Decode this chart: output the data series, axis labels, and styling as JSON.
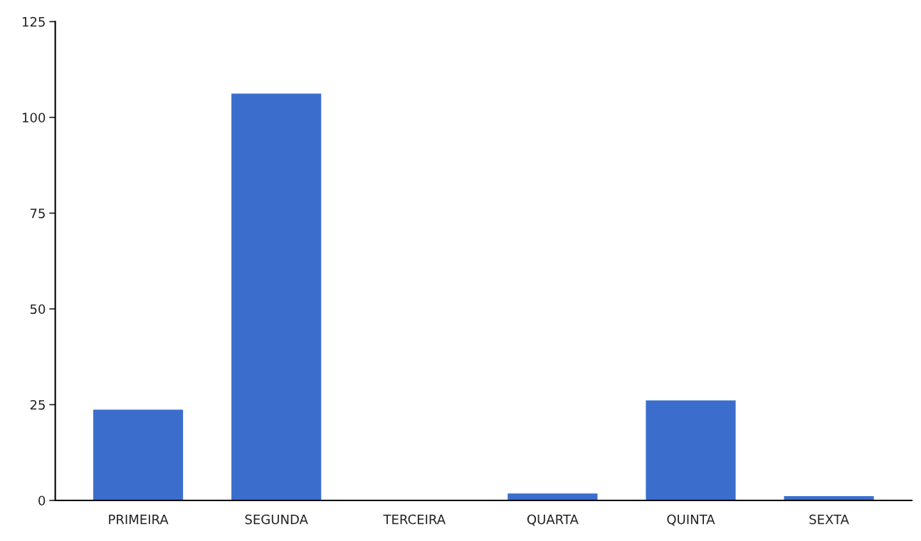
{
  "chart_data": {
    "type": "bar",
    "categories": [
      "PRIMEIRA",
      "SEGUNDA",
      "TERCEIRA",
      "QUARTA",
      "QUINTA",
      "SEXTA"
    ],
    "values": [
      23.7,
      106.2,
      0,
      1.8,
      26.1,
      1.1
    ],
    "color": "#3b6ecc",
    "ylim": [
      0,
      125
    ],
    "yticks": [
      0,
      25,
      50,
      75,
      100,
      125
    ],
    "grid": false
  }
}
